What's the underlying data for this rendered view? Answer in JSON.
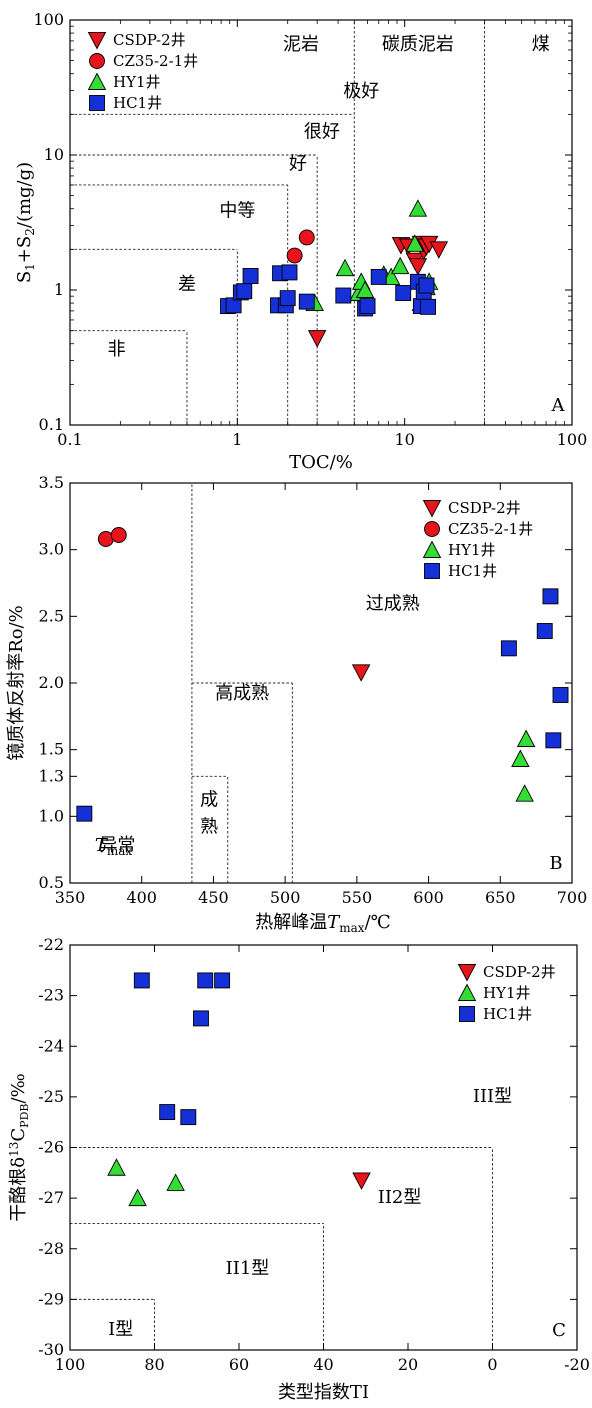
{
  "colors": {
    "csdp": "#e8141c",
    "cz35": "#e8141c",
    "hy1": "#33dd33",
    "hc1": "#1630d8"
  },
  "chart_data": [
    {
      "type": "scatter",
      "panel_label": "A",
      "xlabel": "TOC/%",
      "ylabel": "S1+S2/(mg/g)",
      "x_scale": "log",
      "y_scale": "log",
      "xlim": [
        0.1,
        100
      ],
      "ylim": [
        0.1,
        100
      ],
      "x_ticks": [
        0.1,
        1,
        10,
        100
      ],
      "x_tick_labels": [
        "0.1",
        "1",
        "10",
        "100"
      ],
      "y_ticks": [
        0.1,
        1,
        10,
        100
      ],
      "y_tick_labels": [
        "0.1",
        "1",
        "10",
        "100"
      ],
      "regions": [
        {
          "label": "泥岩",
          "x": 2.4,
          "y": 60
        },
        {
          "label": "碳质泥岩",
          "x": 12,
          "y": 60
        },
        {
          "label": "煤",
          "x": 65,
          "y": 60
        },
        {
          "label": "极好",
          "x": 5.5,
          "y": 27
        },
        {
          "label": "很好",
          "x": 3.2,
          "y": 13.5
        },
        {
          "label": "好",
          "x": 2.3,
          "y": 7.8
        },
        {
          "label": "中等",
          "x": 1.0,
          "y": 3.5
        },
        {
          "label": "差",
          "x": 0.5,
          "y": 1.0
        },
        {
          "label": "非",
          "x": 0.19,
          "y": 0.33
        }
      ],
      "boundary_lines": [
        {
          "x1": 5,
          "y1": 0.1,
          "x2": 5,
          "y2": 100
        },
        {
          "x1": 30,
          "y1": 0.1,
          "x2": 30,
          "y2": 100
        },
        {
          "x1": 0.1,
          "y1": 20,
          "x2": 5,
          "y2": 20
        },
        {
          "x1": 0.1,
          "y1": 10,
          "x2": 3,
          "y2": 10
        },
        {
          "x1": 3,
          "y1": 0.1,
          "x2": 3,
          "y2": 10
        },
        {
          "x1": 0.1,
          "y1": 6,
          "x2": 2,
          "y2": 6
        },
        {
          "x1": 2,
          "y1": 0.1,
          "x2": 2,
          "y2": 6
        },
        {
          "x1": 0.1,
          "y1": 2,
          "x2": 1,
          "y2": 2
        },
        {
          "x1": 1,
          "y1": 0.1,
          "x2": 1,
          "y2": 2
        },
        {
          "x1": 0.1,
          "y1": 0.5,
          "x2": 0.5,
          "y2": 0.5
        },
        {
          "x1": 0.5,
          "y1": 0.1,
          "x2": 0.5,
          "y2": 0.5
        }
      ],
      "legend_position": "top-left",
      "series": [
        {
          "name": "CSDP-2井",
          "marker": "triangle-down",
          "color_key": "csdp",
          "points": [
            [
              3.0,
              0.44
            ],
            [
              9.5,
              2.15
            ],
            [
              10.5,
              2.1
            ],
            [
              11.5,
              1.65
            ],
            [
              12.0,
              1.5
            ],
            [
              12.5,
              2.2
            ],
            [
              13.0,
              1.95
            ],
            [
              13.5,
              2.1
            ],
            [
              14.0,
              2.2
            ],
            [
              16.0,
              2.0
            ]
          ]
        },
        {
          "name": "CZ35-2-1井",
          "marker": "circle",
          "color_key": "cz35",
          "points": [
            [
              2.2,
              1.8
            ],
            [
              2.6,
              2.45
            ]
          ]
        },
        {
          "name": "HY1井",
          "marker": "triangle-up",
          "color_key": "hy1",
          "points": [
            [
              2.9,
              0.8
            ],
            [
              4.4,
              1.45
            ],
            [
              5.3,
              0.95
            ],
            [
              5.5,
              1.15
            ],
            [
              5.8,
              1.0
            ],
            [
              7.5,
              1.3
            ],
            [
              8.3,
              1.25
            ],
            [
              9.4,
              1.5
            ],
            [
              11.5,
              2.2
            ],
            [
              12.0,
              4.0
            ],
            [
              12.5,
              0.8
            ],
            [
              13.5,
              1.05
            ],
            [
              14.0,
              1.15
            ]
          ]
        },
        {
          "name": "HC1井",
          "marker": "square",
          "color_key": "hc1",
          "points": [
            [
              0.88,
              0.76
            ],
            [
              0.95,
              0.77
            ],
            [
              1.05,
              0.96
            ],
            [
              1.1,
              0.98
            ],
            [
              1.2,
              1.27
            ],
            [
              1.75,
              0.77
            ],
            [
              1.8,
              1.33
            ],
            [
              1.95,
              0.77
            ],
            [
              2.0,
              0.87
            ],
            [
              2.05,
              1.35
            ],
            [
              2.6,
              0.82
            ],
            [
              4.3,
              0.91
            ],
            [
              5.8,
              0.73
            ],
            [
              6.0,
              0.76
            ],
            [
              7.0,
              1.25
            ],
            [
              9.8,
              0.95
            ],
            [
              12.0,
              1.15
            ],
            [
              12.5,
              0.76
            ],
            [
              13.0,
              0.97
            ],
            [
              13.5,
              1.08
            ],
            [
              13.8,
              0.75
            ]
          ]
        }
      ]
    },
    {
      "type": "scatter",
      "panel_label": "B",
      "xlabel_main": "热解峰温",
      "xlabel_var": "T",
      "xlabel_sub": "max",
      "xlabel_unit": "/℃",
      "ylabel": "镜质体反射率Ro/%",
      "xlim": [
        350,
        700
      ],
      "ylim": [
        0.5,
        3.5
      ],
      "x_ticks": [
        350,
        400,
        450,
        500,
        550,
        600,
        650,
        700
      ],
      "x_tick_labels": [
        "350",
        "400",
        "450",
        "500",
        "550",
        "600",
        "650",
        "700"
      ],
      "y_ticks": [
        0.5,
        1.0,
        1.3,
        1.5,
        2.0,
        2.5,
        3.0,
        3.5
      ],
      "y_tick_labels": [
        "0.5",
        "1.0",
        "1.3",
        "1.5",
        "2.0",
        "2.5",
        "3.0",
        "3.5"
      ],
      "regions": [
        {
          "label": "过成熟",
          "x": 575,
          "y": 2.55
        },
        {
          "label": "高成熟",
          "x": 470,
          "y": 1.88
        },
        {
          "label": "成",
          "x": 447,
          "y": 1.08
        },
        {
          "label": "熟",
          "x": 447,
          "y": 0.88
        },
        {
          "label": "异常",
          "x": 383,
          "y": 0.74
        }
      ],
      "region_tmax": {
        "var": "T",
        "sub": "max",
        "x": 352,
        "y": 0.74
      },
      "boundary_lines": [
        {
          "x1": 435,
          "y1": 0.5,
          "x2": 435,
          "y2": 3.5
        },
        {
          "x1": 435,
          "y1": 2.0,
          "x2": 505,
          "y2": 2.0
        },
        {
          "x1": 505,
          "y1": 0.5,
          "x2": 505,
          "y2": 2.0
        },
        {
          "x1": 435,
          "y1": 1.3,
          "x2": 460,
          "y2": 1.3
        },
        {
          "x1": 460,
          "y1": 0.5,
          "x2": 460,
          "y2": 1.3
        }
      ],
      "legend_position": "top-right",
      "series": [
        {
          "name": "CSDP-2井",
          "marker": "triangle-down",
          "color_key": "csdp",
          "points": [
            [
              553,
              2.08
            ]
          ]
        },
        {
          "name": "CZ35-2-1井",
          "marker": "circle",
          "color_key": "cz35",
          "points": [
            [
              375,
              3.08
            ],
            [
              384,
              3.11
            ]
          ]
        },
        {
          "name": "HY1井",
          "marker": "triangle-up",
          "color_key": "hy1",
          "points": [
            [
              664,
              1.43
            ],
            [
              667,
              1.17
            ],
            [
              668,
              1.58
            ]
          ]
        },
        {
          "name": "HC1井",
          "marker": "square",
          "color_key": "hc1",
          "points": [
            [
              360,
              1.02
            ],
            [
              656,
              2.26
            ],
            [
              681,
              2.39
            ],
            [
              685,
              2.65
            ],
            [
              687,
              1.57
            ],
            [
              692,
              1.91
            ]
          ]
        }
      ]
    },
    {
      "type": "scatter",
      "panel_label": "C",
      "xlabel": "类型指数TI",
      "ylabel_main": "干酪根δ",
      "ylabel_sup": "13",
      "ylabel_c": "C",
      "ylabel_sub": "PDB",
      "ylabel_unit": "/‰",
      "xlim": [
        100,
        -20
      ],
      "ylim": [
        -30,
        -22
      ],
      "x_ticks": [
        100,
        80,
        60,
        40,
        20,
        0,
        -20
      ],
      "x_tick_labels": [
        "100",
        "80",
        "60",
        "40",
        "20",
        "0",
        "-20"
      ],
      "y_ticks": [
        -30,
        -29,
        -28,
        -27,
        -26,
        -25,
        -24,
        -23,
        -22
      ],
      "y_tick_labels": [
        "-30",
        "-29",
        "-28",
        "-27",
        "-26",
        "-25",
        "-24",
        "-23",
        "-22"
      ],
      "regions": [
        {
          "label": "III型",
          "x": 0,
          "y": -25.1
        },
        {
          "label": "II2型",
          "x": 22,
          "y": -27.1
        },
        {
          "label": "II1型",
          "x": 58,
          "y": -28.5
        },
        {
          "label": "I型",
          "x": 88,
          "y": -29.7
        }
      ],
      "boundary_lines": [
        {
          "x1": 100,
          "y1": -26,
          "x2": 0,
          "y2": -26
        },
        {
          "x1": 0,
          "y1": -30,
          "x2": 0,
          "y2": -26
        },
        {
          "x1": 100,
          "y1": -27.5,
          "x2": 40,
          "y2": -27.5
        },
        {
          "x1": 40,
          "y1": -30,
          "x2": 40,
          "y2": -27.5
        },
        {
          "x1": 100,
          "y1": -29,
          "x2": 80,
          "y2": -29
        },
        {
          "x1": 80,
          "y1": -30,
          "x2": 80,
          "y2": -29
        }
      ],
      "legend_position": "top-right",
      "series": [
        {
          "name": "CSDP-2井",
          "marker": "triangle-down",
          "color_key": "csdp",
          "points": [
            [
              31,
              -26.65
            ]
          ]
        },
        {
          "name": "HY1井",
          "marker": "triangle-up",
          "color_key": "hy1",
          "points": [
            [
              89,
              -26.4
            ],
            [
              84,
              -27.0
            ],
            [
              75,
              -26.7
            ]
          ]
        },
        {
          "name": "HC1井",
          "marker": "square",
          "color_key": "hc1",
          "points": [
            [
              83,
              -22.7
            ],
            [
              68,
              -22.7
            ],
            [
              64,
              -22.7
            ],
            [
              69,
              -23.45
            ],
            [
              77,
              -25.3
            ],
            [
              72,
              -25.4
            ]
          ]
        }
      ]
    }
  ]
}
